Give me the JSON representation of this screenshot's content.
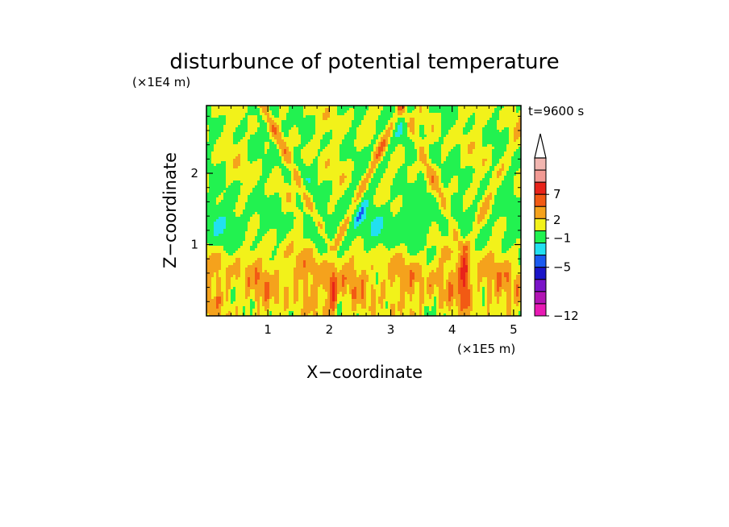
{
  "chart_data": {
    "type": "heatmap",
    "title": "disturbunce of potential temperature",
    "xlabel": "X−coordinate",
    "ylabel": "Z−coordinate",
    "x_unit_label": "(×1E5 m)",
    "y_unit_label": "(×1E4 m)",
    "time_label": "t=9600 s",
    "x_ticks": [
      1,
      2,
      3,
      4,
      5
    ],
    "y_ticks": [
      1,
      2
    ],
    "xlim": [
      0,
      5.12
    ],
    "ylim": [
      0,
      2.95
    ],
    "colorbar": {
      "extend": "max",
      "labels": [
        {
          "value": 7,
          "text": "7"
        },
        {
          "value": 2,
          "text": "2"
        },
        {
          "value": -1,
          "text": "−1"
        },
        {
          "value": -5,
          "text": "−5"
        },
        {
          "value": -12,
          "text": "−12"
        }
      ],
      "levels": [
        {
          "color": "#f2b6b0"
        },
        {
          "color": "#f29a94"
        },
        {
          "color": "#e8231a"
        },
        {
          "color": "#f25a14"
        },
        {
          "color": "#f5a21c"
        },
        {
          "color": "#f2f21a"
        },
        {
          "color": "#22f250"
        },
        {
          "color": "#22e0f0"
        },
        {
          "color": "#1a5af0"
        },
        {
          "color": "#1a14c8"
        },
        {
          "color": "#7a14c8"
        },
        {
          "color": "#b214b4"
        },
        {
          "color": "#e81ab4"
        }
      ],
      "arrow_color": "#ffffff"
    },
    "field_colors": {
      "neutral_pos": "#f2f21a",
      "neutral_neg": "#22f250",
      "warm1": "#f5a21c",
      "warm2": "#f25a14",
      "warm3": "#e8231a",
      "cool1": "#22e0f0",
      "cool2": "#1a5af0"
    }
  }
}
